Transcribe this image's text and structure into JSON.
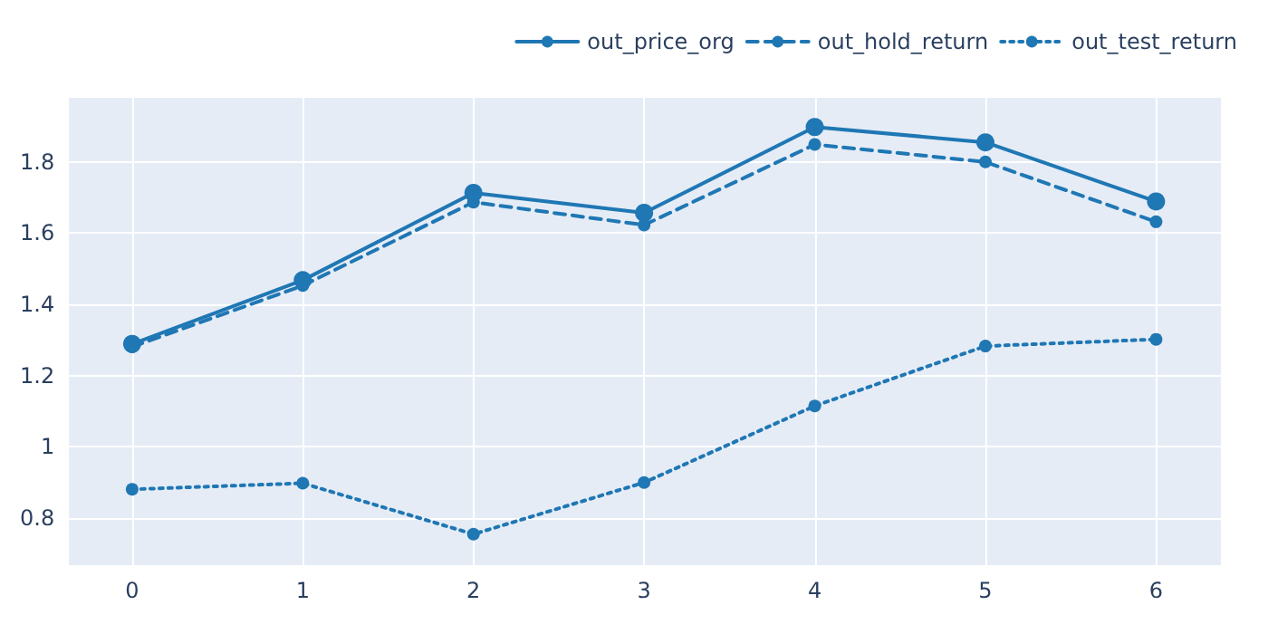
{
  "chart_data": {
    "type": "line",
    "x": [
      0,
      1,
      2,
      3,
      4,
      5,
      6
    ],
    "series": [
      {
        "name": "out_price_org",
        "color": "#1f77b4",
        "line_style": "solid",
        "values": [
          1.289,
          1.468,
          1.713,
          1.657,
          1.898,
          1.855,
          1.689
        ]
      },
      {
        "name": "out_hold_return",
        "color": "#1f77b4",
        "line_style": "dashed",
        "values": [
          1.281,
          1.453,
          1.687,
          1.623,
          1.849,
          1.8,
          1.632
        ]
      },
      {
        "name": "out_test_return",
        "color": "#1f77b4",
        "line_style": "dotted",
        "values": [
          0.881,
          0.898,
          0.755,
          0.9,
          1.115,
          1.283,
          1.302
        ]
      }
    ],
    "xlim": [
      -0.37,
      6.38
    ],
    "xticks": [
      0,
      1,
      2,
      3,
      4,
      5,
      6
    ],
    "ylim": [
      0.668,
      1.98
    ],
    "yticks": [
      0.8,
      1,
      1.2,
      1.4,
      1.6,
      1.8
    ],
    "grid": true,
    "legend": "top right",
    "marker": "circle"
  }
}
